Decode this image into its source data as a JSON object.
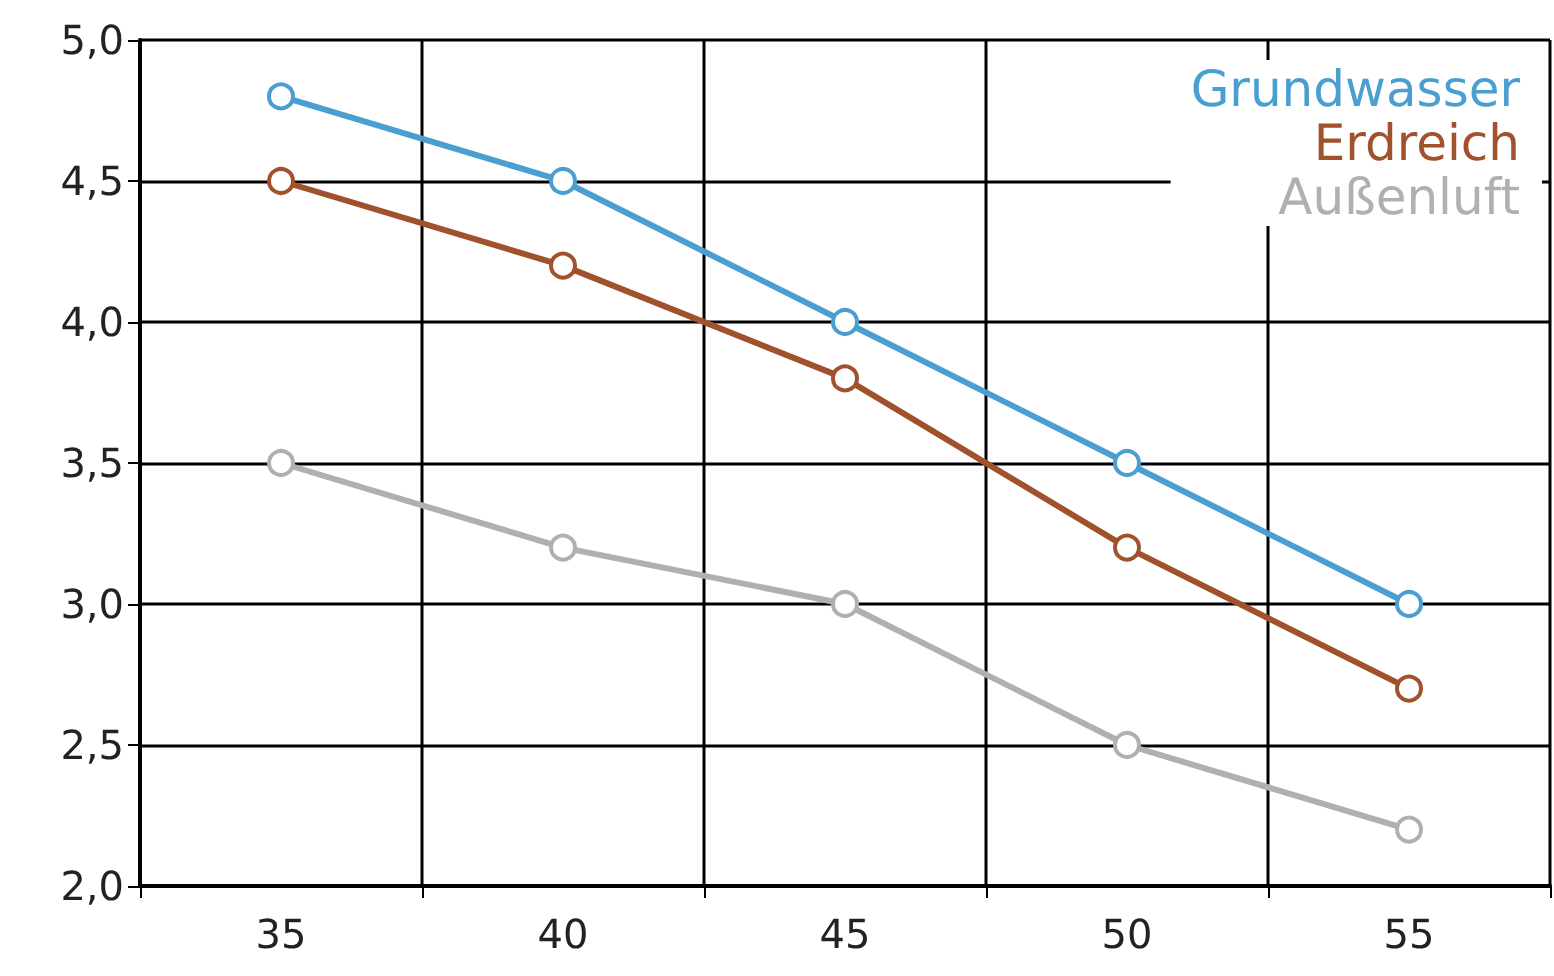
{
  "chart_data": {
    "type": "line",
    "categories": [
      "35",
      "40",
      "45",
      "50",
      "55"
    ],
    "series": [
      {
        "name": "Grundwasser",
        "color": "#4a9fd0",
        "values": [
          4.8,
          4.5,
          4.0,
          3.5,
          3.0
        ]
      },
      {
        "name": "Erdreich",
        "color": "#a0522d",
        "values": [
          4.5,
          4.2,
          3.8,
          3.2,
          2.7
        ]
      },
      {
        "name": "Außenluft",
        "color": "#b0b0b0",
        "values": [
          3.5,
          3.2,
          3.0,
          2.5,
          2.2
        ]
      }
    ],
    "ylim": [
      2,
      5
    ],
    "yticks": [
      {
        "value": 2,
        "label": "2,0"
      },
      {
        "value": 2.5,
        "label": "2,5"
      },
      {
        "value": 3,
        "label": "3,0"
      },
      {
        "value": 3.5,
        "label": "3,5"
      },
      {
        "value": 4,
        "label": "4,0"
      },
      {
        "value": 4.5,
        "label": "4,5"
      },
      {
        "value": 5,
        "label": "5,0"
      }
    ],
    "grid": true,
    "legend": "top right",
    "marker": "circle",
    "line_style": "solid"
  }
}
